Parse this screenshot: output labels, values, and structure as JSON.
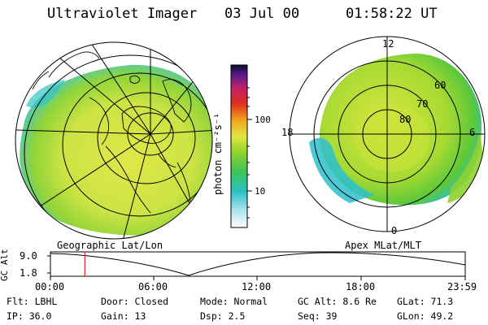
{
  "header": {
    "title": "Ultraviolet Imager",
    "date": "03 Jul 00",
    "time": "01:58:22 UT"
  },
  "left_map": {
    "label": "Geographic Lat/Lon"
  },
  "right_map": {
    "label": "Apex MLat/MLT",
    "mlt_labels": {
      "top": "12",
      "left": "18",
      "right": "6",
      "bottom": "0"
    },
    "lat_labels": [
      "60",
      "70",
      "80"
    ]
  },
  "colorbar": {
    "unit": "photon cm⁻²s⁻¹",
    "ticks": [
      "100",
      "10"
    ]
  },
  "altitude_plot": {
    "ylabel": "GC Alt",
    "yticks": [
      "9.0",
      "1.8"
    ],
    "xticks": [
      "00:00",
      "06:00",
      "12:00",
      "18:00",
      "23:59"
    ],
    "current_time_fraction": 0.083
  },
  "status": {
    "filter": "Flt: LBHL",
    "ip": "IP: 36.0",
    "door": "Door: Closed",
    "gain": "Gain: 13",
    "mode": "Mode: Normal",
    "dsp": "Dsp:    2.5",
    "gc_alt": "GC Alt: 8.6 Re",
    "seq": "Seq: 39",
    "glat": "GLat:  71.3",
    "glon": "GLon:  49.2"
  },
  "colors": {
    "aurora_main": "#d6e63c",
    "aurora_green": "#7ccf2e",
    "aurora_cyan": "#37c9c9",
    "marker_red": "#e02020"
  }
}
